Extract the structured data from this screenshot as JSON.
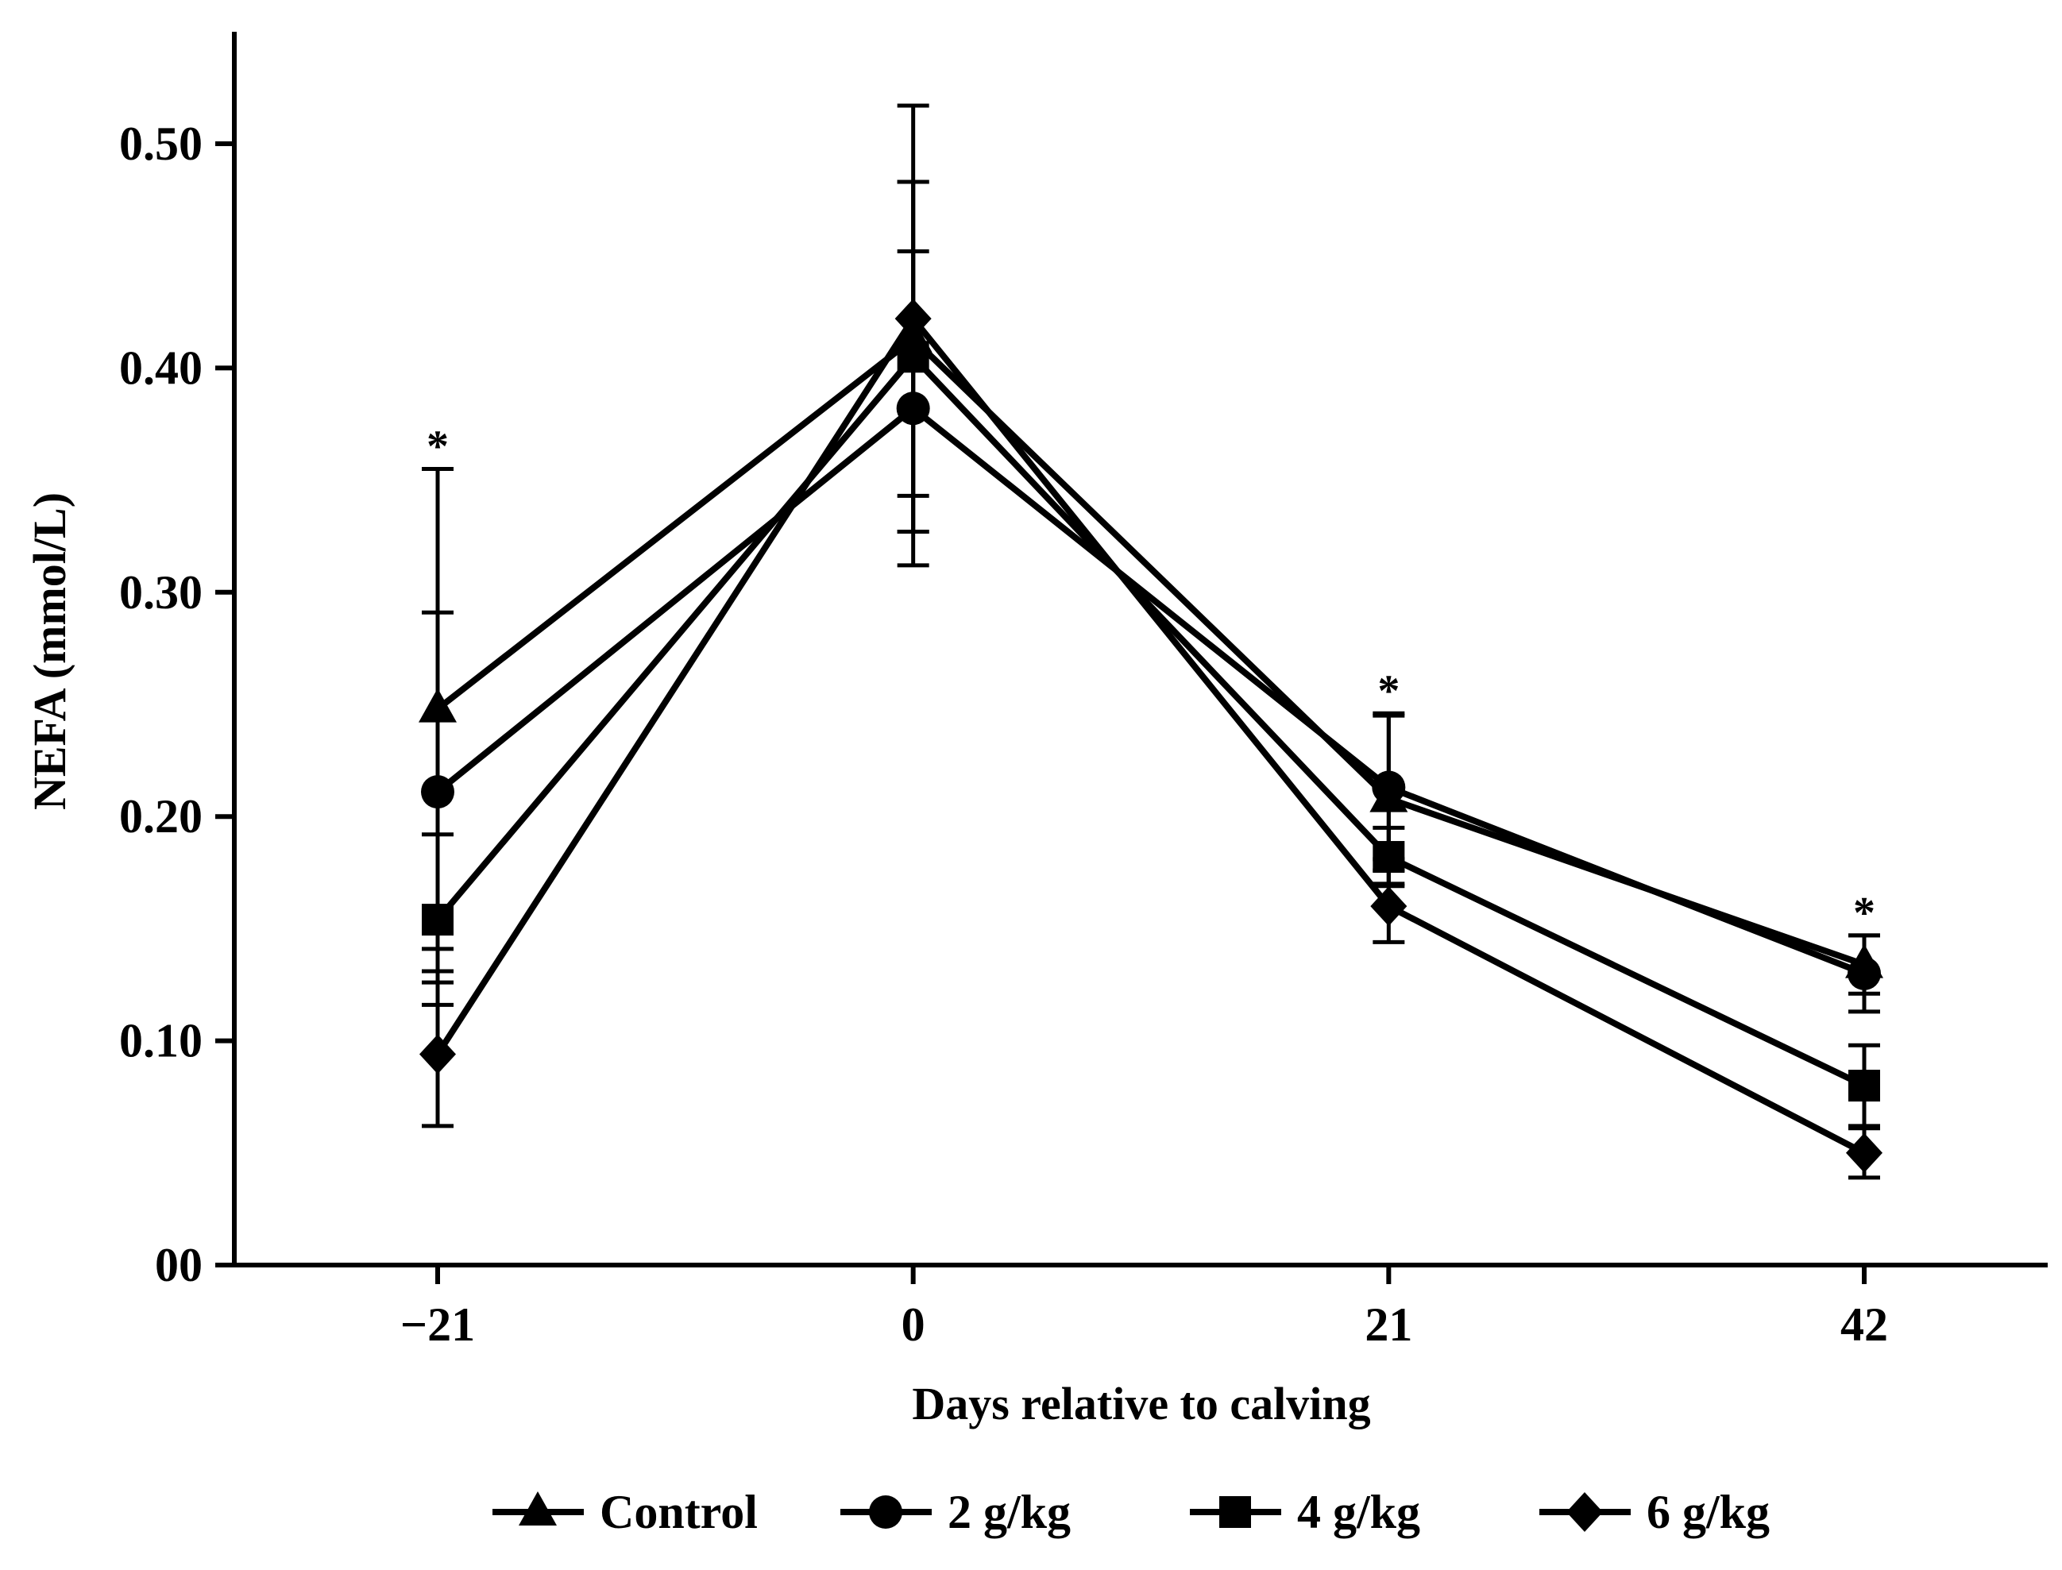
{
  "chart_data": {
    "type": "line",
    "title": "",
    "xlabel": "Days relative to calving",
    "ylabel": "NEFA (mmol/L)",
    "x": [
      -21,
      0,
      21,
      42
    ],
    "x_tick_labels": [
      "−21",
      "0",
      "21",
      "42"
    ],
    "xlim": [
      -30,
      50
    ],
    "ylim": [
      0,
      0.55
    ],
    "y_ticks": [
      0,
      0.1,
      0.2,
      0.3,
      0.4,
      0.5
    ],
    "y_tick_labels": [
      "00",
      "0.10",
      "0.20",
      "0.30",
      "0.40",
      "0.50"
    ],
    "grid": false,
    "legend_position": "bottom",
    "significance_marker": "*",
    "significant_at_x": [
      -21,
      21,
      42
    ],
    "series": [
      {
        "name": "Control",
        "marker": "triangle",
        "values": [
          0.248,
          0.413,
          0.208,
          0.134
        ],
        "errors": [
          0.107,
          0.07,
          0.038,
          0.013
        ]
      },
      {
        "name": "2 g/kg",
        "marker": "circle",
        "values": [
          0.211,
          0.382,
          0.213,
          0.13
        ],
        "errors": [
          0.08,
          0.07,
          0.032,
          0.017
        ]
      },
      {
        "name": "4 g/kg",
        "marker": "square",
        "values": [
          0.154,
          0.405,
          0.182,
          0.08
        ],
        "errors": [
          0.038,
          0.078,
          0.013,
          0.018
        ]
      },
      {
        "name": "6 g/kg",
        "marker": "diamond",
        "values": [
          0.094,
          0.422,
          0.16,
          0.05
        ],
        "errors": [
          0.032,
          0.095,
          0.016,
          0.011
        ]
      }
    ]
  }
}
